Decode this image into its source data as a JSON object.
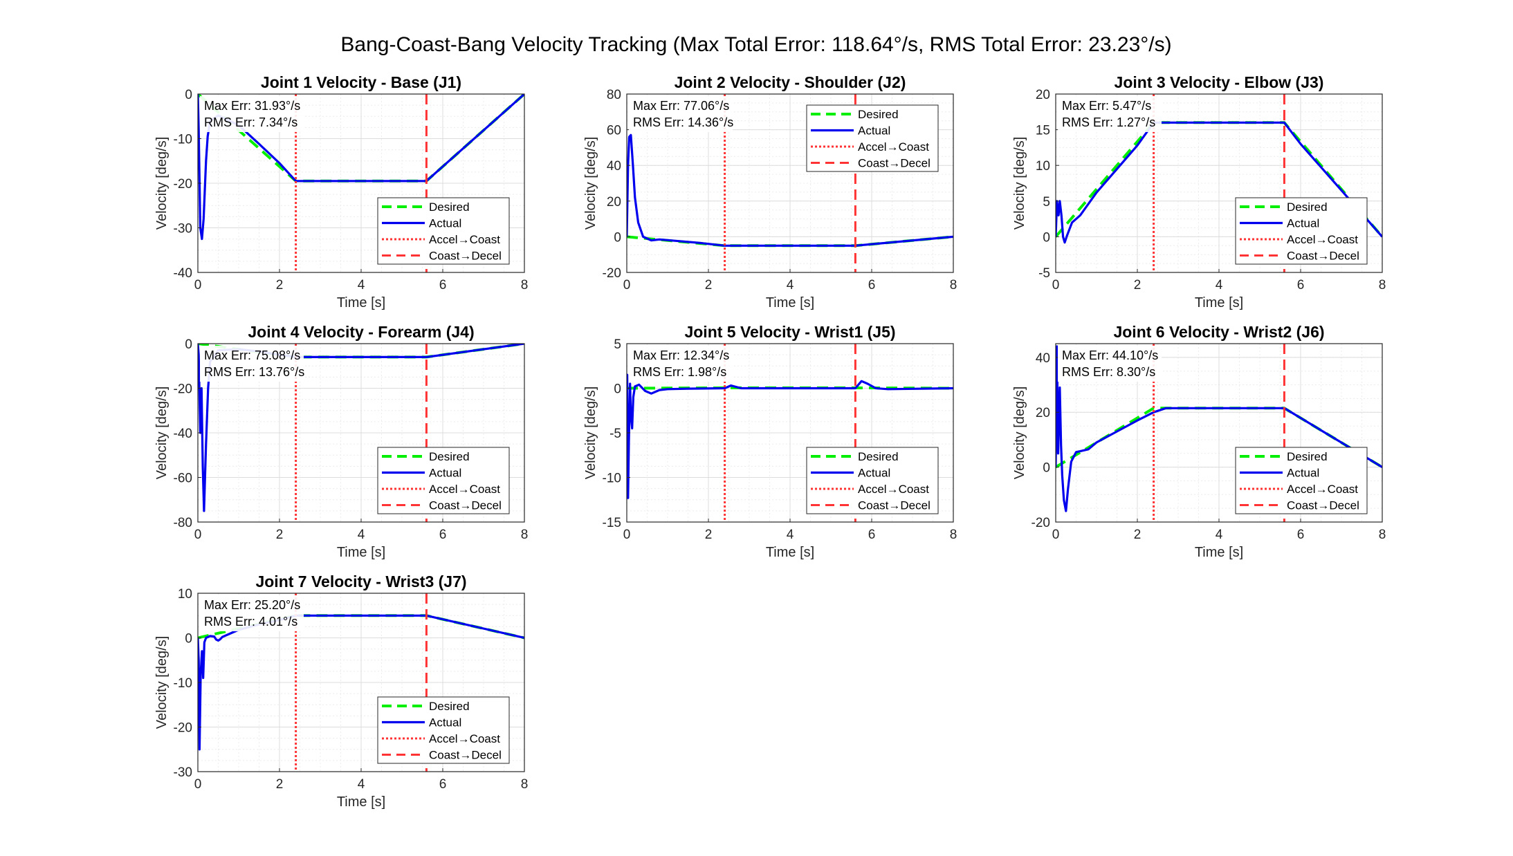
{
  "figure_title": "Bang-Coast-Bang Velocity Tracking (Max Total Error: 118.64°/s, RMS Total Error: 23.23°/s)",
  "legend_labels": [
    "Desired",
    "Actual",
    "Accel→Coast",
    "Coast→Decel"
  ],
  "colors": {
    "desired": "#00ee00",
    "actual": "#0000ee",
    "accel_coast": "#ff3333",
    "coast_decel": "#ff3333"
  },
  "chart_data": [
    {
      "type": "line",
      "title": "Joint 1 Velocity - Base (J1)",
      "xlabel": "Time [s]",
      "ylabel": "Velocity [deg/s]",
      "xlim": [
        0,
        8
      ],
      "ylim": [
        -40,
        0
      ],
      "xticks": [
        0,
        2,
        4,
        6,
        8
      ],
      "yticks": [
        -40,
        -30,
        -20,
        -10,
        0
      ],
      "grid": true,
      "legend_position": "bottom-right",
      "annotations": [
        "Max Err: 31.93°/s",
        "RMS Err: 7.34°/s"
      ],
      "vlines": [
        2.4,
        5.6
      ],
      "series": [
        {
          "name": "Desired",
          "x": [
            0,
            2.4,
            5.6,
            8
          ],
          "y": [
            0,
            -19.5,
            -19.5,
            0
          ]
        },
        {
          "name": "Actual",
          "x": [
            0,
            0.02,
            0.06,
            0.1,
            0.14,
            0.2,
            0.24,
            0.3,
            0.5,
            1.0,
            1.5,
            2.0,
            2.4,
            2.6,
            5.6,
            8
          ],
          "y": [
            0,
            -8,
            -30,
            -32.5,
            -28,
            -15,
            -9.5,
            -6,
            -4.8,
            -7,
            -11.2,
            -15.5,
            -19.5,
            -19.5,
            -19.5,
            0
          ]
        }
      ]
    },
    {
      "type": "line",
      "title": "Joint 2 Velocity - Shoulder (J2)",
      "xlabel": "Time [s]",
      "ylabel": "Velocity [deg/s]",
      "xlim": [
        0,
        8
      ],
      "ylim": [
        -20,
        80
      ],
      "xticks": [
        0,
        2,
        4,
        6,
        8
      ],
      "yticks": [
        -20,
        0,
        20,
        40,
        60,
        80
      ],
      "grid": true,
      "legend_position": "top-right",
      "annotations": [
        "Max Err: 77.06°/s",
        "RMS Err: 14.36°/s"
      ],
      "vlines": [
        2.4,
        5.6
      ],
      "series": [
        {
          "name": "Desired",
          "x": [
            0,
            2.4,
            5.6,
            8
          ],
          "y": [
            0,
            -5,
            -5,
            0
          ]
        },
        {
          "name": "Actual",
          "x": [
            0,
            0.03,
            0.06,
            0.1,
            0.15,
            0.2,
            0.28,
            0.4,
            0.6,
            0.8,
            1.2,
            1.8,
            2.4,
            5.6,
            8
          ],
          "y": [
            0,
            40,
            56,
            57,
            40,
            22,
            8,
            0,
            -2,
            -1.5,
            -2.3,
            -3.5,
            -5,
            -5,
            0
          ]
        }
      ]
    },
    {
      "type": "line",
      "title": "Joint 3 Velocity - Elbow (J3)",
      "xlabel": "Time [s]",
      "ylabel": "Velocity [deg/s]",
      "xlim": [
        0,
        8
      ],
      "ylim": [
        -5,
        20
      ],
      "xticks": [
        0,
        2,
        4,
        6,
        8
      ],
      "yticks": [
        -5,
        0,
        5,
        10,
        15,
        20
      ],
      "grid": true,
      "legend_position": "bottom-right",
      "annotations": [
        "Max Err: 5.47°/s",
        "RMS Err: 1.27°/s"
      ],
      "vlines": [
        2.4,
        5.6
      ],
      "series": [
        {
          "name": "Desired",
          "x": [
            0,
            2.4,
            5.6,
            8
          ],
          "y": [
            0,
            16,
            16,
            0
          ]
        },
        {
          "name": "Actual",
          "x": [
            0,
            0.03,
            0.07,
            0.1,
            0.14,
            0.18,
            0.22,
            0.28,
            0.4,
            0.6,
            1.0,
            1.5,
            2.0,
            2.4,
            5.6,
            5.8,
            6.0,
            8
          ],
          "y": [
            0,
            5,
            3,
            5,
            3,
            0,
            -0.8,
            0.2,
            2,
            3,
            6.2,
            9.5,
            12.8,
            16,
            16,
            14.5,
            13,
            0
          ]
        }
      ]
    },
    {
      "type": "line",
      "title": "Joint 4 Velocity - Forearm (J4)",
      "xlabel": "Time [s]",
      "ylabel": "Velocity [deg/s]",
      "xlim": [
        0,
        8
      ],
      "ylim": [
        -80,
        0
      ],
      "xticks": [
        0,
        2,
        4,
        6,
        8
      ],
      "yticks": [
        -80,
        -60,
        -40,
        -20,
        0
      ],
      "grid": true,
      "legend_position": "bottom-right",
      "annotations": [
        "Max Err: 75.08°/s",
        "RMS Err: 13.76°/s"
      ],
      "vlines": [
        2.4,
        5.6
      ],
      "series": [
        {
          "name": "Desired",
          "x": [
            0,
            2.4,
            5.6,
            8
          ],
          "y": [
            0,
            -6,
            -6,
            0
          ]
        },
        {
          "name": "Actual",
          "x": [
            0,
            0.02,
            0.06,
            0.09,
            0.12,
            0.15,
            0.2,
            0.25,
            0.3,
            0.5,
            1.0,
            1.5,
            2.0,
            2.4,
            5.6,
            8
          ],
          "y": [
            0,
            -5,
            -40,
            -20,
            -55,
            -75,
            -45,
            -20,
            -8,
            -3,
            -2.5,
            -3.5,
            -5,
            -6,
            -6,
            0
          ]
        }
      ]
    },
    {
      "type": "line",
      "title": "Joint 5 Velocity - Wrist1 (J5)",
      "xlabel": "Time [s]",
      "ylabel": "Velocity [deg/s]",
      "xlim": [
        0,
        8
      ],
      "ylim": [
        -15,
        5
      ],
      "xticks": [
        0,
        2,
        4,
        6,
        8
      ],
      "yticks": [
        -15,
        -10,
        -5,
        0,
        5
      ],
      "grid": true,
      "legend_position": "bottom-right",
      "annotations": [
        "Max Err: 12.34°/s",
        "RMS Err: 1.98°/s"
      ],
      "vlines": [
        2.4,
        5.6
      ],
      "series": [
        {
          "name": "Desired",
          "x": [
            0,
            2.4,
            5.6,
            8
          ],
          "y": [
            0,
            0.05,
            0.05,
            0
          ]
        },
        {
          "name": "Actual",
          "x": [
            0,
            0.01,
            0.03,
            0.05,
            0.08,
            0.1,
            0.13,
            0.16,
            0.2,
            0.3,
            0.45,
            0.6,
            0.8,
            1.0,
            1.5,
            2.4,
            2.55,
            2.8,
            5.6,
            5.75,
            5.9,
            6.1,
            6.4,
            8
          ],
          "y": [
            0,
            1.5,
            -12.3,
            -6,
            0.5,
            -3,
            -4.5,
            -1,
            0.2,
            0.4,
            -0.3,
            -0.6,
            -0.2,
            -0.1,
            -0.05,
            0,
            0.3,
            0,
            0,
            0.8,
            0.5,
            0,
            -0.1,
            0
          ]
        }
      ]
    },
    {
      "type": "line",
      "title": "Joint 6 Velocity - Wrist2 (J6)",
      "xlabel": "Time [s]",
      "ylabel": "Velocity [deg/s]",
      "xlim": [
        0,
        8
      ],
      "ylim": [
        -20,
        45
      ],
      "xticks": [
        0,
        2,
        4,
        6,
        8
      ],
      "yticks": [
        -20,
        0,
        20,
        40
      ],
      "grid": true,
      "legend_position": "bottom-right",
      "annotations": [
        "Max Err: 44.10°/s",
        "RMS Err: 8.30°/s"
      ],
      "vlines": [
        2.4,
        5.6
      ],
      "series": [
        {
          "name": "Desired",
          "x": [
            0,
            2.4,
            5.6,
            8
          ],
          "y": [
            0,
            21.5,
            21.5,
            0
          ]
        },
        {
          "name": "Actual",
          "x": [
            0,
            0.03,
            0.06,
            0.1,
            0.13,
            0.16,
            0.2,
            0.25,
            0.3,
            0.38,
            0.5,
            0.6,
            0.8,
            1.0,
            1.5,
            2.0,
            2.4,
            2.7,
            5.6,
            8
          ],
          "y": [
            0,
            44,
            5,
            29,
            8,
            -3,
            -12,
            -16,
            -8,
            2,
            5.5,
            5.8,
            6.5,
            9,
            13,
            17,
            20,
            21.5,
            21.5,
            0
          ]
        }
      ]
    },
    {
      "type": "line",
      "title": "Joint 7 Velocity - Wrist3 (J7)",
      "xlabel": "Time [s]",
      "ylabel": "Velocity [deg/s]",
      "xlim": [
        0,
        8
      ],
      "ylim": [
        -30,
        10
      ],
      "xticks": [
        0,
        2,
        4,
        6,
        8
      ],
      "yticks": [
        -30,
        -20,
        -10,
        0,
        10
      ],
      "grid": true,
      "legend_position": "bottom-right",
      "annotations": [
        "Max Err: 25.20°/s",
        "RMS Err: 4.01°/s"
      ],
      "vlines": [
        2.4,
        5.6
      ],
      "series": [
        {
          "name": "Desired",
          "x": [
            0,
            2.4,
            5.6,
            8
          ],
          "y": [
            0,
            5,
            5,
            0
          ]
        },
        {
          "name": "Actual",
          "x": [
            0,
            0.02,
            0.04,
            0.07,
            0.1,
            0.13,
            0.16,
            0.2,
            0.3,
            0.4,
            0.45,
            0.5,
            0.55,
            0.6,
            0.7,
            1.0,
            1.5,
            2.0,
            2.4,
            5.6,
            8
          ],
          "y": [
            0,
            -5,
            -25,
            -8,
            -3,
            -9,
            -1,
            0,
            0.4,
            0.3,
            -0.4,
            -0.6,
            -0.3,
            0.2,
            0.6,
            1.8,
            3,
            4,
            5,
            5,
            0
          ]
        }
      ]
    }
  ]
}
